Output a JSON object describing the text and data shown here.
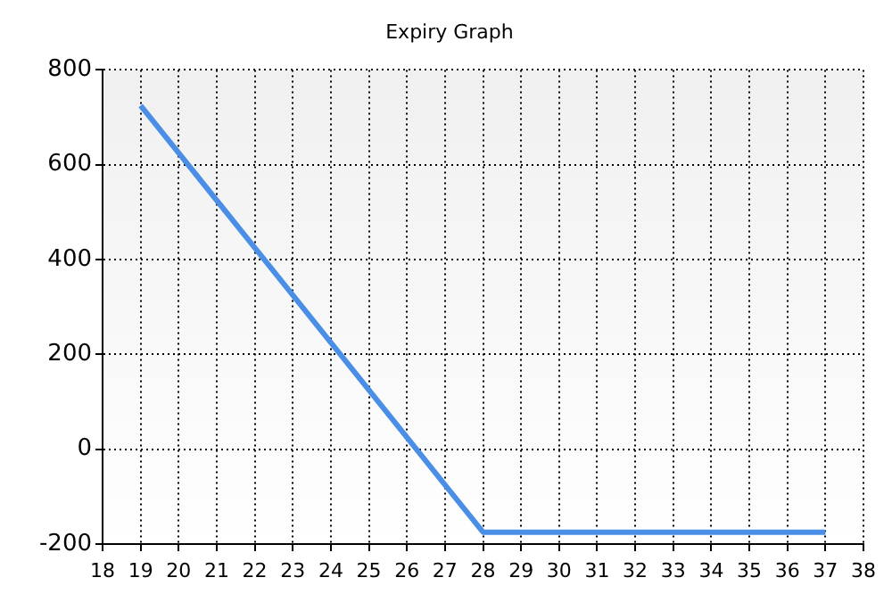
{
  "chart_data": {
    "type": "line",
    "title": "Expiry Graph",
    "x": [
      19,
      28,
      37
    ],
    "series": [
      {
        "color": "#4a8ee6",
        "values": [
          725,
          -175,
          -175
        ]
      }
    ],
    "xlim": [
      18,
      38
    ],
    "xticks": [
      18,
      19,
      20,
      21,
      22,
      23,
      24,
      25,
      26,
      27,
      28,
      29,
      30,
      31,
      32,
      33,
      34,
      35,
      36,
      37,
      38
    ],
    "ylim": [
      -200,
      800
    ],
    "yticks": [
      -200,
      0,
      200,
      400,
      600,
      800
    ],
    "grid": true,
    "legend": false,
    "marker": "none",
    "line_style": "solid"
  }
}
